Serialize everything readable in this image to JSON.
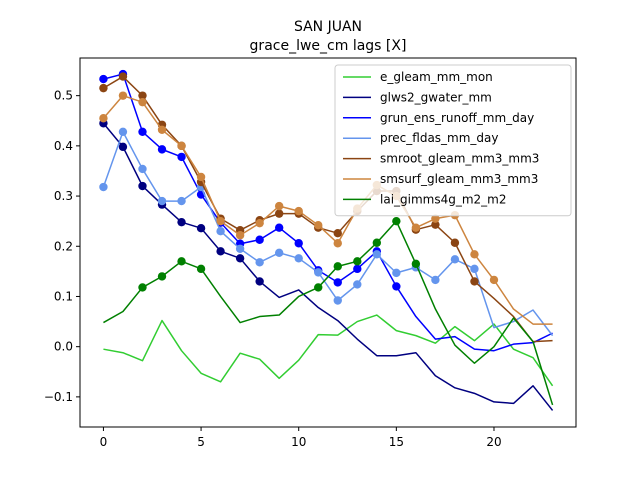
{
  "chart_data": {
    "type": "line",
    "title": "SAN JUAN",
    "subtitle": "grace_lwe_cm lags [X]",
    "xlabel": "",
    "ylabel": "",
    "xlim": [
      -1.2,
      24.2
    ],
    "ylim": [
      -0.16,
      0.575
    ],
    "xticks": [
      0,
      5,
      10,
      15,
      20
    ],
    "yticks": [
      -0.1,
      0.0,
      0.1,
      0.2,
      0.3,
      0.4,
      0.5
    ],
    "ytick_labels": [
      "−0.1",
      "0.0",
      "0.1",
      "0.2",
      "0.3",
      "0.4",
      "0.5"
    ],
    "grid": false,
    "legend_position": "top-right",
    "x": [
      0,
      1,
      2,
      3,
      4,
      5,
      6,
      7,
      8,
      9,
      10,
      11,
      12,
      13,
      14,
      15,
      16,
      17,
      18,
      19,
      20,
      21,
      22,
      23
    ],
    "series": [
      {
        "name": "e_gleam_mm_mon",
        "color": "#32cd32",
        "values": [
          -0.005,
          -0.012,
          -0.028,
          0.052,
          -0.008,
          -0.053,
          -0.07,
          -0.013,
          -0.025,
          -0.063,
          -0.027,
          0.024,
          0.023,
          0.05,
          0.063,
          0.032,
          0.022,
          0.007,
          0.04,
          0.012,
          0.045,
          -0.005,
          -0.022,
          -0.078
        ],
        "markers": []
      },
      {
        "name": "glws2_gwater_mm",
        "color": "#000080",
        "values": [
          0.445,
          0.398,
          0.32,
          0.283,
          0.248,
          0.236,
          0.19,
          0.176,
          0.13,
          0.098,
          0.113,
          0.078,
          0.052,
          0.015,
          -0.018,
          -0.018,
          -0.012,
          -0.058,
          -0.082,
          -0.093,
          -0.11,
          -0.113,
          -0.078,
          -0.127
        ],
        "markers": [
          0,
          1,
          2,
          3,
          4,
          5,
          6,
          7,
          8
        ]
      },
      {
        "name": "grun_ens_runoff_mm_day",
        "color": "#0000ff",
        "values": [
          0.533,
          0.543,
          0.428,
          0.393,
          0.378,
          0.303,
          0.247,
          0.205,
          0.213,
          0.237,
          0.206,
          0.152,
          0.128,
          0.155,
          0.19,
          0.12,
          0.06,
          0.015,
          0.02,
          -0.005,
          -0.008,
          0.005,
          0.008,
          0.027
        ],
        "markers": [
          0,
          1,
          2,
          3,
          4,
          5,
          6,
          7,
          8,
          9,
          10,
          11,
          12,
          13,
          14,
          15
        ]
      },
      {
        "name": "prec_fldas_mm_day",
        "color": "#6495ed",
        "values": [
          0.318,
          0.428,
          0.354,
          0.29,
          0.29,
          0.318,
          0.23,
          0.195,
          0.168,
          0.187,
          0.176,
          0.148,
          0.092,
          0.124,
          0.184,
          0.147,
          0.158,
          0.133,
          0.174,
          0.155,
          0.038,
          0.05,
          0.073,
          0.022
        ],
        "markers": [
          0,
          1,
          2,
          3,
          4,
          5,
          6,
          7,
          8,
          9,
          10,
          11,
          12,
          13,
          14,
          15,
          16,
          17,
          18,
          19
        ]
      },
      {
        "name": "smroot_gleam_mm3_mm3",
        "color": "#8b4513",
        "values": [
          0.515,
          0.538,
          0.5,
          0.442,
          0.4,
          0.328,
          0.255,
          0.232,
          0.252,
          0.265,
          0.265,
          0.237,
          0.226,
          0.27,
          0.31,
          0.31,
          0.233,
          0.243,
          0.207,
          0.13,
          0.096,
          0.06,
          0.01,
          0.012
        ],
        "markers": [
          0,
          1,
          2,
          3,
          4,
          5,
          6,
          7,
          8,
          9,
          10,
          11,
          12,
          13,
          14,
          15,
          16,
          17,
          18,
          19
        ]
      },
      {
        "name": "smsurf_gleam_mm3_mm3",
        "color": "#cd853f",
        "values": [
          0.455,
          0.5,
          0.487,
          0.432,
          0.4,
          0.338,
          0.25,
          0.222,
          0.246,
          0.28,
          0.27,
          0.242,
          0.206,
          0.275,
          0.322,
          0.3,
          0.237,
          0.255,
          0.262,
          0.184,
          0.133,
          0.075,
          0.045,
          0.045
        ],
        "markers": [
          0,
          1,
          2,
          3,
          4,
          5,
          6,
          7,
          8,
          9,
          10,
          11,
          12,
          13,
          14,
          15,
          16,
          17,
          18,
          19,
          20
        ]
      },
      {
        "name": "lai_gimms4g_m2_m2",
        "color": "#008000",
        "values": [
          0.048,
          0.07,
          0.118,
          0.14,
          0.17,
          0.155,
          0.1,
          0.048,
          0.06,
          0.063,
          0.1,
          0.118,
          0.16,
          0.17,
          0.207,
          0.25,
          0.165,
          0.075,
          0.003,
          -0.033,
          0.0,
          0.057,
          0.01,
          -0.116
        ],
        "markers": [
          2,
          3,
          4,
          5,
          11,
          12,
          13,
          14,
          15,
          16
        ]
      }
    ]
  }
}
